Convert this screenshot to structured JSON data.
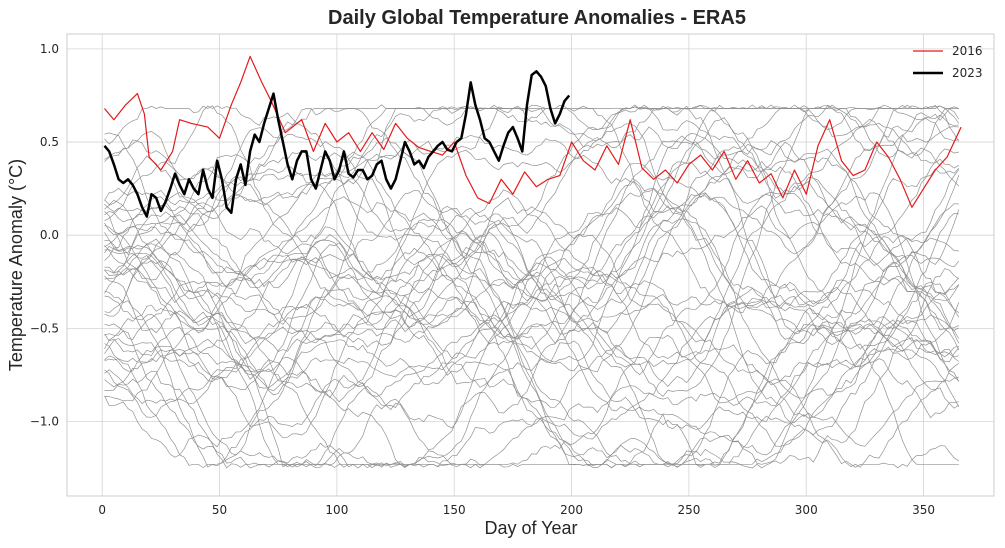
{
  "chart_data": {
    "type": "line",
    "title": "Daily Global Temperature Anomalies - ERA5",
    "xlabel": "Day of Year",
    "ylabel": "Temperature Anomaly (°C)",
    "xlim": [
      -15,
      380
    ],
    "ylim": [
      -1.4,
      1.08
    ],
    "x_ticks": [
      0,
      50,
      100,
      150,
      200,
      250,
      300,
      350
    ],
    "x_tick_labels": [
      "0",
      "50",
      "100",
      "150",
      "200",
      "250",
      "300",
      "350"
    ],
    "y_ticks": [
      -1.0,
      -0.5,
      0.0,
      0.5,
      1.0
    ],
    "y_tick_labels": [
      "−1.0",
      "−0.5",
      "0.0",
      "0.5",
      "1.0"
    ],
    "grid": true,
    "legend_position": "top-right",
    "legend": [
      "2016",
      "2023"
    ],
    "colors": {
      "2016": "#e31a1c",
      "2023": "#000000",
      "other_years": "#8c8c8c"
    },
    "background_years": {
      "count": 44,
      "days": [
        1,
        366
      ],
      "value_range": [
        -1.25,
        0.7
      ],
      "note_color": "#8c8c8c"
    },
    "series": [
      {
        "name": "2016",
        "x": [
          1,
          5,
          10,
          15,
          18,
          20,
          25,
          30,
          33,
          38,
          45,
          50,
          55,
          59,
          63,
          68,
          72,
          78,
          85,
          90,
          95,
          100,
          105,
          110,
          115,
          120,
          125,
          130,
          135,
          140,
          145,
          150,
          155,
          160,
          165,
          170,
          175,
          180,
          185,
          190,
          195,
          200,
          205,
          210,
          215,
          220,
          225,
          230,
          235,
          240,
          245,
          250,
          255,
          260,
          265,
          270,
          275,
          280,
          285,
          290,
          295,
          300,
          305,
          310,
          315,
          320,
          325,
          330,
          335,
          340,
          345,
          350,
          355,
          360,
          366
        ],
        "values": [
          0.68,
          0.62,
          0.7,
          0.76,
          0.65,
          0.42,
          0.35,
          0.45,
          0.62,
          0.6,
          0.58,
          0.52,
          0.7,
          0.82,
          0.96,
          0.82,
          0.72,
          0.55,
          0.62,
          0.45,
          0.6,
          0.5,
          0.55,
          0.45,
          0.55,
          0.46,
          0.6,
          0.52,
          0.47,
          0.45,
          0.43,
          0.5,
          0.32,
          0.2,
          0.17,
          0.3,
          0.22,
          0.34,
          0.26,
          0.3,
          0.32,
          0.5,
          0.4,
          0.35,
          0.48,
          0.38,
          0.62,
          0.36,
          0.3,
          0.35,
          0.28,
          0.38,
          0.43,
          0.35,
          0.45,
          0.3,
          0.4,
          0.28,
          0.33,
          0.2,
          0.35,
          0.22,
          0.48,
          0.62,
          0.4,
          0.32,
          0.35,
          0.5,
          0.42,
          0.3,
          0.15,
          0.25,
          0.35,
          0.42,
          0.58
        ]
      },
      {
        "name": "2023",
        "x": [
          1,
          3,
          5,
          7,
          9,
          11,
          13,
          15,
          17,
          19,
          21,
          23,
          25,
          27,
          29,
          31,
          33,
          35,
          37,
          39,
          41,
          43,
          45,
          47,
          49,
          51,
          53,
          55,
          57,
          59,
          61,
          63,
          65,
          67,
          69,
          71,
          73,
          75,
          77,
          79,
          81,
          83,
          85,
          87,
          89,
          91,
          93,
          95,
          97,
          99,
          101,
          103,
          105,
          107,
          109,
          111,
          113,
          115,
          117,
          119,
          121,
          123,
          125,
          127,
          129,
          131,
          133,
          135,
          137,
          139,
          141,
          143,
          145,
          147,
          149,
          151,
          153,
          155,
          157,
          159,
          161,
          163,
          165,
          167,
          169,
          171,
          173,
          175,
          177,
          179,
          181,
          183,
          185,
          187,
          189,
          191,
          193,
          195,
          197,
          199
        ],
        "values": [
          0.48,
          0.45,
          0.38,
          0.3,
          0.28,
          0.3,
          0.27,
          0.22,
          0.15,
          0.1,
          0.22,
          0.2,
          0.13,
          0.18,
          0.25,
          0.33,
          0.27,
          0.22,
          0.3,
          0.25,
          0.22,
          0.35,
          0.25,
          0.2,
          0.4,
          0.3,
          0.15,
          0.12,
          0.3,
          0.38,
          0.27,
          0.45,
          0.54,
          0.5,
          0.6,
          0.68,
          0.76,
          0.62,
          0.5,
          0.38,
          0.3,
          0.4,
          0.45,
          0.45,
          0.3,
          0.25,
          0.35,
          0.45,
          0.4,
          0.3,
          0.35,
          0.45,
          0.33,
          0.31,
          0.35,
          0.35,
          0.3,
          0.32,
          0.38,
          0.4,
          0.3,
          0.25,
          0.3,
          0.4,
          0.5,
          0.45,
          0.38,
          0.4,
          0.36,
          0.42,
          0.45,
          0.48,
          0.5,
          0.46,
          0.45,
          0.5,
          0.52,
          0.65,
          0.82,
          0.7,
          0.62,
          0.52,
          0.5,
          0.45,
          0.4,
          0.48,
          0.55,
          0.58,
          0.52,
          0.45,
          0.7,
          0.86,
          0.88,
          0.85,
          0.8,
          0.68,
          0.6,
          0.65,
          0.72,
          0.75
        ]
      }
    ]
  }
}
